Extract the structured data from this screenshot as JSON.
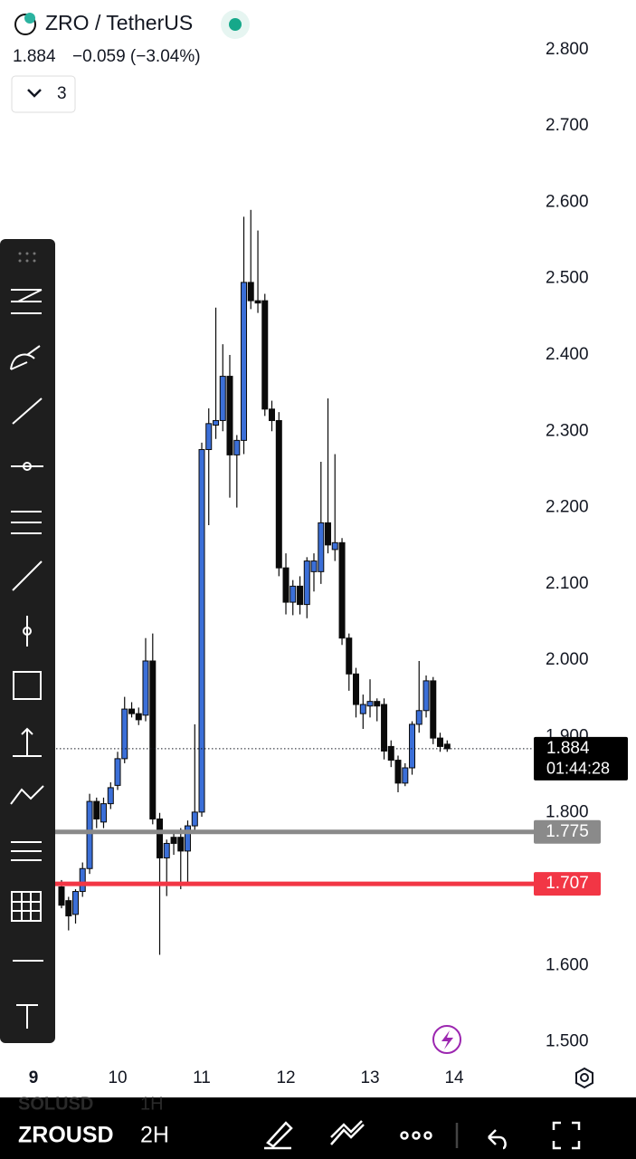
{
  "header": {
    "symbol": "ZRO / TetherUS",
    "change": "−0.059 (−3.04%)",
    "count": "3"
  },
  "bottom_bar": {
    "symbol": "ZROUSD",
    "interval": "2H",
    "prev_symbol": "SOLUSD",
    "prev_interval": "1H"
  },
  "chart_data": {
    "type": "candlestick",
    "x": [
      9.333,
      9.417,
      9.5,
      9.583,
      9.667,
      9.75,
      9.833,
      9.917,
      10,
      10.083,
      10.167,
      10.25,
      10.333,
      10.417,
      10.5,
      10.583,
      10.667,
      10.75,
      10.833,
      10.917,
      11,
      11.083,
      11.167,
      11.25,
      11.333,
      11.417,
      11.5,
      11.583,
      11.667,
      11.75,
      11.833,
      11.917,
      12,
      12.083,
      12.167,
      12.25,
      12.333,
      12.417,
      12.5,
      12.583,
      12.667,
      12.75,
      12.833,
      12.917,
      13,
      13.083,
      13.167,
      13.25,
      13.333,
      13.417,
      13.5,
      13.583,
      13.667,
      13.75,
      13.833,
      13.917
    ],
    "open": [
      1.703,
      1.685,
      1.667,
      1.697,
      1.727,
      1.815,
      1.788,
      1.812,
      1.836,
      1.871,
      1.936,
      1.93,
      1.928,
      1.999,
      1.792,
      1.741,
      1.768,
      1.768,
      1.75,
      1.783,
      1.801,
      2.276,
      2.308,
      2.314,
      2.372,
      2.269,
      2.288,
      2.495,
      2.471,
      2.471,
      2.329,
      2.314,
      2.121,
      2.076,
      2.097,
      2.073,
      2.116,
      2.116,
      2.18,
      2.145,
      2.154,
      2.029,
      1.982,
      1.93,
      1.94,
      1.946,
      1.942,
      1.887,
      1.869,
      1.839,
      1.859,
      1.916,
      1.934,
      1.973,
      1.898,
      1.89
    ],
    "high": [
      1.712,
      1.69,
      1.7,
      1.735,
      1.825,
      1.82,
      1.82,
      1.84,
      1.88,
      1.952,
      1.945,
      1.938,
      2.029,
      2.035,
      1.8,
      1.765,
      1.775,
      1.78,
      1.79,
      1.916,
      2.285,
      2.33,
      2.462,
      2.414,
      2.4,
      2.295,
      2.581,
      2.59,
      2.563,
      2.48,
      2.34,
      2.325,
      2.14,
      2.105,
      2.11,
      2.135,
      2.14,
      2.26,
      2.343,
      2.27,
      2.16,
      2.035,
      1.99,
      1.955,
      1.975,
      1.95,
      1.95,
      1.895,
      1.875,
      1.865,
      1.92,
      1.999,
      1.98,
      1.978,
      1.905,
      1.895
    ],
    "low": [
      1.675,
      1.646,
      1.655,
      1.69,
      1.72,
      1.78,
      1.78,
      1.805,
      1.83,
      1.865,
      1.925,
      1.915,
      1.92,
      1.785,
      1.614,
      1.691,
      1.745,
      1.7,
      1.709,
      1.775,
      1.795,
      2.177,
      2.29,
      2.3,
      2.213,
      2.2,
      2.27,
      2.46,
      2.455,
      2.32,
      2.3,
      2.11,
      2.06,
      2.059,
      2.06,
      2.055,
      2.09,
      2.1,
      2.14,
      2.13,
      2.02,
      1.96,
      1.925,
      1.91,
      1.925,
      1.92,
      1.87,
      1.86,
      1.827,
      1.835,
      1.85,
      1.905,
      1.925,
      1.89,
      1.88,
      1.88
    ],
    "close": [
      1.679,
      1.665,
      1.697,
      1.727,
      1.815,
      1.792,
      1.812,
      1.833,
      1.871,
      1.936,
      1.93,
      1.922,
      1.999,
      1.792,
      1.741,
      1.76,
      1.76,
      1.75,
      1.783,
      1.801,
      2.276,
      2.31,
      2.314,
      2.372,
      2.269,
      2.288,
      2.495,
      2.471,
      2.468,
      2.329,
      2.314,
      2.121,
      2.076,
      2.097,
      2.073,
      2.13,
      2.13,
      2.18,
      2.151,
      2.154,
      2.029,
      1.982,
      1.942,
      1.942,
      1.946,
      1.94,
      1.881,
      1.869,
      1.839,
      1.859,
      1.916,
      1.934,
      1.973,
      1.898,
      1.887,
      1.884
    ],
    "up_color": "#3b6fd8",
    "down_color": "#0a0a0a",
    "xlim": [
      8.602,
      14.946
    ],
    "ylim": [
      1.477,
      2.865
    ],
    "xticks": [
      9,
      10,
      11,
      12,
      13,
      14
    ],
    "yticks": [
      {
        "value": 1.5,
        "label": "1.500"
      },
      {
        "value": 1.6,
        "label": "1.600"
      },
      {
        "value": 1.7,
        "label": "1.700"
      },
      {
        "value": 1.8,
        "label": "1.800"
      },
      {
        "value": 1.9,
        "label": "1.900"
      },
      {
        "value": 2.0,
        "label": "2.000"
      },
      {
        "value": 2.1,
        "label": "2.100"
      },
      {
        "value": 2.2,
        "label": "2.200"
      },
      {
        "value": 2.3,
        "label": "2.300"
      },
      {
        "value": 2.4,
        "label": "2.400"
      },
      {
        "value": 2.5,
        "label": "2.500"
      },
      {
        "value": 2.6,
        "label": "2.600"
      },
      {
        "value": 2.7,
        "label": "2.700"
      },
      {
        "value": 2.8,
        "label": "2.800"
      }
    ],
    "price_lines": [
      {
        "value": 1.775,
        "color": "#8a8a8a"
      },
      {
        "value": 1.707,
        "color": "#f23645"
      }
    ],
    "last_price": {
      "value": 1.884,
      "countdown": "01:44:28"
    }
  }
}
